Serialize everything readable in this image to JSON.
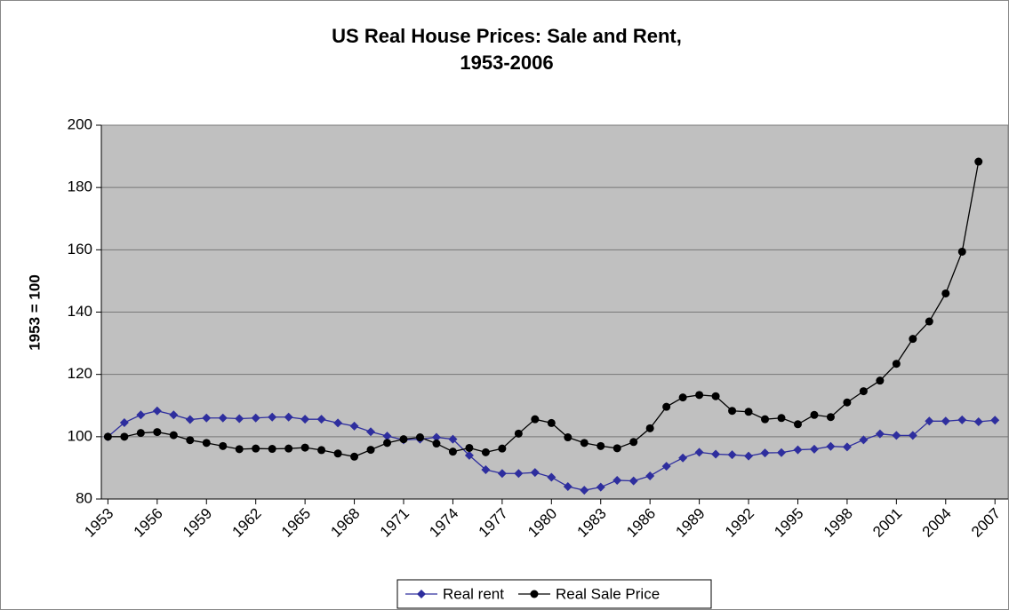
{
  "chart_data": {
    "type": "line",
    "title": [
      "US Real House Prices: Sale and Rent,",
      "1953-2006"
    ],
    "ylabel": "1953 = 100",
    "x": [
      1953,
      1954,
      1955,
      1956,
      1957,
      1958,
      1959,
      1960,
      1961,
      1962,
      1963,
      1964,
      1965,
      1966,
      1967,
      1968,
      1969,
      1970,
      1971,
      1972,
      1973,
      1974,
      1975,
      1976,
      1977,
      1978,
      1979,
      1980,
      1981,
      1982,
      1983,
      1984,
      1985,
      1986,
      1987,
      1988,
      1989,
      1990,
      1991,
      1992,
      1993,
      1994,
      1995,
      1996,
      1997,
      1998,
      1999,
      2000,
      2001,
      2002,
      2003,
      2004,
      2005,
      2006,
      2007
    ],
    "series": [
      {
        "name": "Real rent",
        "color": "#2e2e9e",
        "marker": "diamond",
        "values": [
          100,
          104.5,
          107,
          108.3,
          107,
          105.5,
          106,
          106,
          105.8,
          106,
          106.3,
          106.3,
          105.6,
          105.6,
          104.4,
          103.4,
          101.6,
          100.2,
          99,
          99.2,
          99.8,
          99.2,
          94,
          89.4,
          88.2,
          88.2,
          88.5,
          87,
          84,
          82.8,
          83.8,
          86,
          85.8,
          87.4,
          90.5,
          93.2,
          95,
          94.4,
          94.2,
          93.8,
          94.8,
          94.9,
          95.8,
          96,
          96.9,
          96.7,
          99,
          100.9,
          100.4,
          100.4,
          105,
          105,
          105.4,
          104.8,
          105.3
        ]
      },
      {
        "name": "Real Sale Price",
        "color": "#000000",
        "marker": "circle",
        "values": [
          100,
          100,
          101.2,
          101.5,
          100.5,
          98.9,
          98,
          97,
          96,
          96.2,
          96.1,
          96.2,
          96.5,
          95.7,
          94.6,
          93.6,
          95.8,
          98,
          99.2,
          99.8,
          97.8,
          95.2,
          96.4,
          95,
          96.2,
          101,
          105.6,
          104.4,
          99.8,
          98,
          97,
          96.3,
          98.3,
          102.7,
          109.6,
          112.6,
          113.4,
          113,
          108.3,
          108,
          105.6,
          106,
          104,
          107,
          106.3,
          111,
          114.6,
          118,
          123.4,
          131.4,
          137,
          146,
          159.4,
          188.3,
          null
        ]
      }
    ],
    "xlim": [
      1952.6,
      2007.8
    ],
    "xticks": [
      1953,
      1956,
      1959,
      1962,
      1965,
      1968,
      1971,
      1974,
      1977,
      1980,
      1983,
      1986,
      1989,
      1992,
      1995,
      1998,
      2001,
      2004,
      2007
    ],
    "ylim": [
      80,
      200
    ],
    "yticks": [
      80,
      100,
      120,
      140,
      160,
      180,
      200
    ],
    "grid": true,
    "legend": "bottom",
    "background": "#c0c0c0"
  }
}
